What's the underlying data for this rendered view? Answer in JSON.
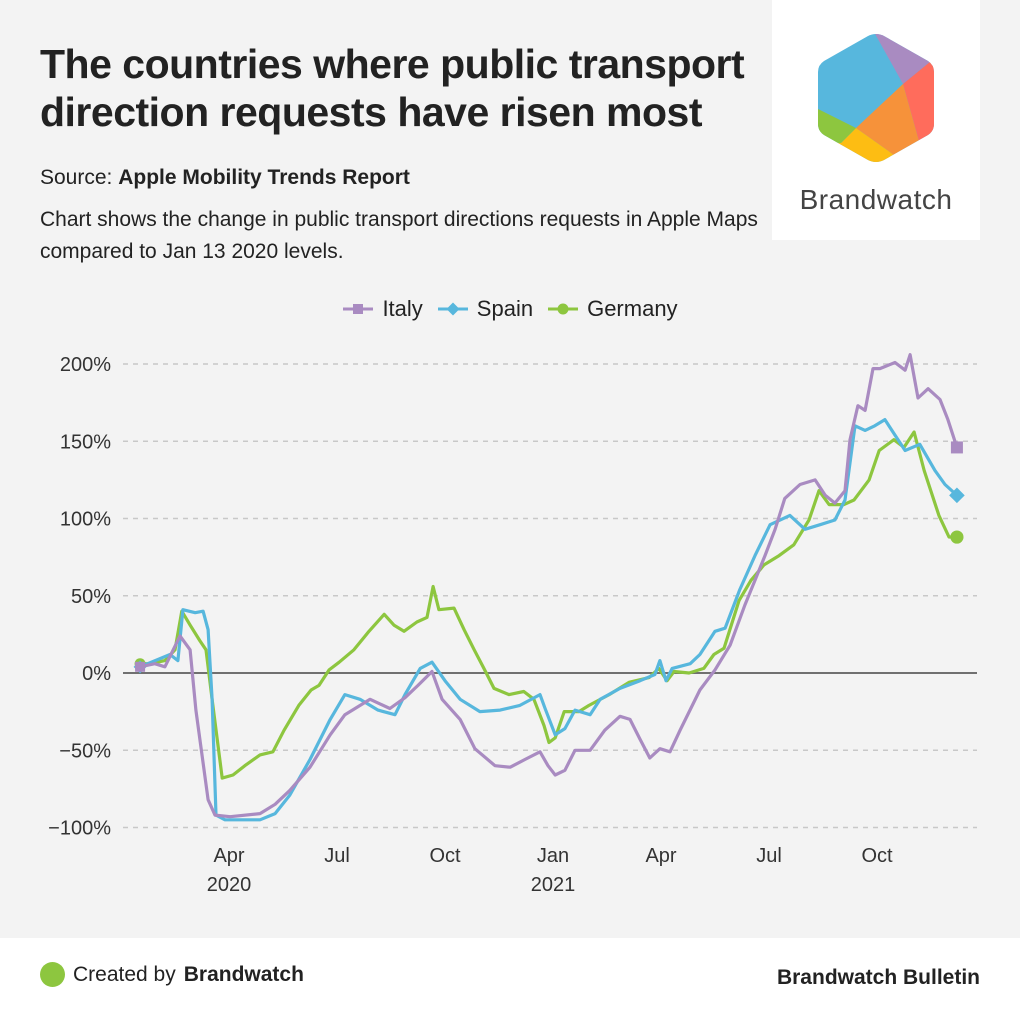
{
  "header": {
    "title": "The countries where public transport direction requests have risen most",
    "source_label": "Source:",
    "source_name": "Apple Mobility Trends Report",
    "description": "Chart shows the change in public transport directions requests in Apple Maps compared to Jan 13 2020 levels."
  },
  "logo": {
    "name": "Brandwatch",
    "colors": [
      "#57b7dd",
      "#a98bc1",
      "#ff6c5c",
      "#f6923a",
      "#fdbd13",
      "#8dc63f"
    ]
  },
  "footer": {
    "created_by_label": "Created by",
    "created_by_name": "Brandwatch",
    "publication": "Brandwatch Bulletin",
    "dot_color": "#8dc63f"
  },
  "chart_data": {
    "type": "line",
    "title": "The countries where public transport direction requests have risen most",
    "xlabel": "",
    "ylabel": "",
    "x_unit": "months since Jan 1 2020",
    "ylim": [
      -100,
      200
    ],
    "y_ticks": [
      200,
      150,
      100,
      50,
      0,
      -50,
      -100
    ],
    "y_tick_labels": [
      "200%",
      "150%",
      "100%",
      "50%",
      "0%",
      "−50%",
      "−100%"
    ],
    "x_ticks": [
      {
        "m": 3,
        "label": "Apr",
        "sub": "2020"
      },
      {
        "m": 6,
        "label": "Jul",
        "sub": ""
      },
      {
        "m": 9,
        "label": "Oct",
        "sub": ""
      },
      {
        "m": 12,
        "label": "Jan",
        "sub": "2021"
      },
      {
        "m": 15,
        "label": "Apr",
        "sub": ""
      },
      {
        "m": 18,
        "label": "Jul",
        "sub": ""
      },
      {
        "m": 21,
        "label": "Oct",
        "sub": ""
      }
    ],
    "xlim": [
      0.4,
      23.2
    ],
    "grid": true,
    "legend_position": "top-center",
    "series": [
      {
        "name": "Italy",
        "color": "#a98bc1",
        "marker": "square",
        "points": [
          [
            0.53,
            4
          ],
          [
            0.94,
            6
          ],
          [
            1.22,
            4
          ],
          [
            1.64,
            24
          ],
          [
            1.92,
            15
          ],
          [
            2.08,
            -24
          ],
          [
            2.42,
            -82
          ],
          [
            2.61,
            -92
          ],
          [
            3.03,
            -93
          ],
          [
            3.86,
            -91
          ],
          [
            4.28,
            -85
          ],
          [
            4.69,
            -76
          ],
          [
            5.25,
            -61
          ],
          [
            5.81,
            -40
          ],
          [
            6.22,
            -27
          ],
          [
            6.92,
            -17
          ],
          [
            7.47,
            -23
          ],
          [
            7.89,
            -16
          ],
          [
            8.25,
            -8
          ],
          [
            8.64,
            1
          ],
          [
            8.92,
            -17
          ],
          [
            9.42,
            -30
          ],
          [
            9.83,
            -49
          ],
          [
            10.39,
            -60
          ],
          [
            10.81,
            -61
          ],
          [
            11.22,
            -56
          ],
          [
            11.64,
            -51
          ],
          [
            11.86,
            -60
          ],
          [
            12.06,
            -66
          ],
          [
            12.33,
            -63
          ],
          [
            12.61,
            -50
          ],
          [
            13.03,
            -50
          ],
          [
            13.44,
            -37
          ],
          [
            13.86,
            -28
          ],
          [
            14.14,
            -30
          ],
          [
            14.42,
            -43
          ],
          [
            14.69,
            -55
          ],
          [
            14.97,
            -49
          ],
          [
            15.25,
            -51
          ],
          [
            15.53,
            -37
          ],
          [
            16.08,
            -11
          ],
          [
            16.5,
            2
          ],
          [
            16.92,
            18
          ],
          [
            17.33,
            44
          ],
          [
            17.61,
            60
          ],
          [
            17.89,
            76
          ],
          [
            18.17,
            93
          ],
          [
            18.44,
            113
          ],
          [
            18.86,
            122
          ],
          [
            19.28,
            125
          ],
          [
            19.56,
            115
          ],
          [
            19.83,
            110
          ],
          [
            20.11,
            118
          ],
          [
            20.25,
            151
          ],
          [
            20.47,
            173
          ],
          [
            20.67,
            170
          ],
          [
            20.89,
            197
          ],
          [
            21.08,
            197
          ],
          [
            21.5,
            201
          ],
          [
            21.78,
            196
          ],
          [
            21.92,
            206
          ],
          [
            22.14,
            178
          ],
          [
            22.42,
            184
          ],
          [
            22.75,
            177
          ],
          [
            22.97,
            164
          ],
          [
            23.22,
            146
          ]
        ]
      },
      {
        "name": "Spain",
        "color": "#57b7dd",
        "marker": "diamond",
        "points": [
          [
            0.53,
            4
          ],
          [
            1.36,
            12
          ],
          [
            1.58,
            8
          ],
          [
            1.72,
            41
          ],
          [
            2.06,
            39
          ],
          [
            2.28,
            40
          ],
          [
            2.42,
            28
          ],
          [
            2.53,
            -17
          ],
          [
            2.64,
            -92
          ],
          [
            2.89,
            -95
          ],
          [
            3.86,
            -95
          ],
          [
            4.28,
            -91
          ],
          [
            4.69,
            -79
          ],
          [
            5.25,
            -56
          ],
          [
            5.81,
            -30
          ],
          [
            6.22,
            -14
          ],
          [
            6.64,
            -17
          ],
          [
            7.14,
            -24
          ],
          [
            7.61,
            -27
          ],
          [
            7.89,
            -14
          ],
          [
            8.31,
            3
          ],
          [
            8.64,
            7
          ],
          [
            9.0,
            -5
          ],
          [
            9.42,
            -17
          ],
          [
            9.97,
            -25
          ],
          [
            10.53,
            -24
          ],
          [
            11.08,
            -21
          ],
          [
            11.64,
            -14
          ],
          [
            11.78,
            -23
          ],
          [
            12.06,
            -40
          ],
          [
            12.33,
            -36
          ],
          [
            12.61,
            -24
          ],
          [
            13.03,
            -27
          ],
          [
            13.31,
            -17
          ],
          [
            13.86,
            -10
          ],
          [
            14.42,
            -5
          ],
          [
            14.83,
            -1
          ],
          [
            14.97,
            8
          ],
          [
            15.14,
            -5
          ],
          [
            15.31,
            3
          ],
          [
            15.81,
            6
          ],
          [
            16.08,
            12
          ],
          [
            16.5,
            27
          ],
          [
            16.78,
            29
          ],
          [
            17.19,
            54
          ],
          [
            17.61,
            76
          ],
          [
            18.03,
            96
          ],
          [
            18.58,
            102
          ],
          [
            19.0,
            93
          ],
          [
            19.42,
            96
          ],
          [
            19.83,
            99
          ],
          [
            20.11,
            112
          ],
          [
            20.39,
            160
          ],
          [
            20.67,
            157
          ],
          [
            20.94,
            160
          ],
          [
            21.22,
            164
          ],
          [
            21.5,
            154
          ],
          [
            21.78,
            144
          ],
          [
            22.19,
            148
          ],
          [
            22.61,
            131
          ],
          [
            22.89,
            122
          ],
          [
            23.22,
            115
          ]
        ]
      },
      {
        "name": "Germany",
        "color": "#8dc63f",
        "marker": "circle",
        "points": [
          [
            0.53,
            6
          ],
          [
            0.81,
            6
          ],
          [
            1.22,
            8
          ],
          [
            1.5,
            15
          ],
          [
            1.69,
            40
          ],
          [
            1.92,
            31
          ],
          [
            2.19,
            21
          ],
          [
            2.36,
            15
          ],
          [
            2.53,
            -17
          ],
          [
            2.81,
            -68
          ],
          [
            3.11,
            -66
          ],
          [
            3.44,
            -60
          ],
          [
            3.86,
            -53
          ],
          [
            4.22,
            -51
          ],
          [
            4.53,
            -37
          ],
          [
            4.94,
            -21
          ],
          [
            5.28,
            -11
          ],
          [
            5.5,
            -8
          ],
          [
            5.78,
            2
          ],
          [
            6.06,
            7
          ],
          [
            6.47,
            15
          ],
          [
            6.89,
            27
          ],
          [
            7.31,
            38
          ],
          [
            7.58,
            31
          ],
          [
            7.86,
            27
          ],
          [
            8.22,
            33
          ],
          [
            8.5,
            36
          ],
          [
            8.67,
            56
          ],
          [
            8.83,
            41
          ],
          [
            9.25,
            42
          ],
          [
            9.53,
            28
          ],
          [
            9.81,
            15
          ],
          [
            10.08,
            3
          ],
          [
            10.36,
            -10
          ],
          [
            10.78,
            -14
          ],
          [
            11.19,
            -12
          ],
          [
            11.47,
            -17
          ],
          [
            11.75,
            -34
          ],
          [
            11.89,
            -45
          ],
          [
            12.06,
            -42
          ],
          [
            12.31,
            -25
          ],
          [
            12.72,
            -25
          ],
          [
            13.0,
            -21
          ],
          [
            13.56,
            -14
          ],
          [
            14.11,
            -6
          ],
          [
            14.67,
            -3
          ],
          [
            14.94,
            3
          ],
          [
            15.17,
            -5
          ],
          [
            15.36,
            1
          ],
          [
            15.78,
            0
          ],
          [
            16.19,
            3
          ],
          [
            16.47,
            12
          ],
          [
            16.75,
            16
          ],
          [
            17.17,
            47
          ],
          [
            17.5,
            60
          ],
          [
            17.86,
            70
          ],
          [
            18.28,
            76
          ],
          [
            18.69,
            83
          ],
          [
            19.11,
            99
          ],
          [
            19.39,
            118
          ],
          [
            19.67,
            109
          ],
          [
            20.08,
            109
          ],
          [
            20.36,
            112
          ],
          [
            20.78,
            125
          ],
          [
            21.06,
            144
          ],
          [
            21.47,
            151
          ],
          [
            21.75,
            146
          ],
          [
            22.03,
            156
          ],
          [
            22.31,
            131
          ],
          [
            22.72,
            102
          ],
          [
            23.0,
            88
          ],
          [
            23.22,
            88
          ]
        ]
      }
    ]
  }
}
